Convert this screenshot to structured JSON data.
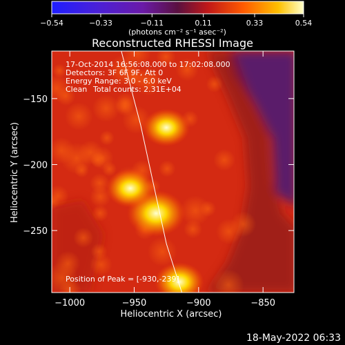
{
  "chart_data": {
    "type": "heatmap",
    "title": "Reconstructed RHESSI Image",
    "xlabel": "Heliocentric X (arcsec)",
    "ylabel": "Heliocentric Y (arcsec)",
    "xlim": [
      -1014,
      -826
    ],
    "ylim": [
      -297,
      -114
    ],
    "x_ticks": [
      -1000,
      -950,
      -900,
      -850
    ],
    "x_tick_labels": [
      "−1000",
      "−950",
      "−900",
      "−850"
    ],
    "y_ticks": [
      -150,
      -200,
      -250
    ],
    "y_tick_labels": [
      "−150",
      "−200",
      "−250"
    ],
    "colorbar": {
      "range": [
        -0.54,
        0.54
      ],
      "ticks": [
        -0.54,
        -0.33,
        -0.11,
        0.11,
        0.33,
        0.54
      ],
      "tick_labels": [
        "−0.54",
        "−0.33",
        "−0.11",
        "0.11",
        "0.33",
        "0.54"
      ],
      "units_label": "(photons cm⁻² s⁻¹ asec⁻²)"
    },
    "sources": [
      {
        "x": -933,
        "y": -237,
        "intensity": 0.54
      },
      {
        "x": -953,
        "y": -218,
        "intensity": 0.38
      },
      {
        "x": -925,
        "y": -172,
        "intensity": 0.36
      },
      {
        "x": -915,
        "y": -289,
        "intensity": 0.4
      }
    ],
    "limb_curve": [
      {
        "x": -960,
        "y": -114
      },
      {
        "x": -945,
        "y": -170
      },
      {
        "x": -935,
        "y": -215
      },
      {
        "x": -925,
        "y": -260
      },
      {
        "x": -913,
        "y": -297
      }
    ],
    "annotations": {
      "time": "17-Oct-2014 16:56:08.000 to 17:02:08.000",
      "detectors": "Detectors: 3F 6F 9F, Att 0",
      "energy": "Energy Range: 3.0 - 6.0 keV",
      "method": "Clean",
      "counts": "Total counts: 2.31E+04",
      "peak": "Position of Peak = [-930,-239]"
    },
    "footer_date": "18-May-2022 06:33"
  }
}
